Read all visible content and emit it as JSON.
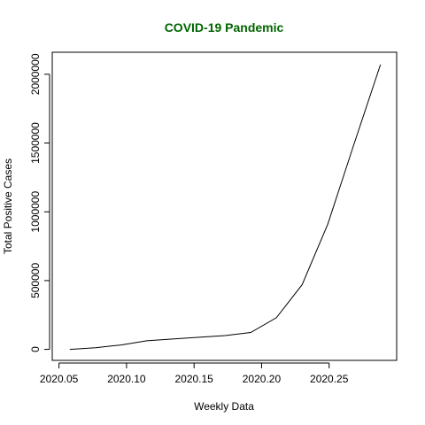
{
  "chart_data": {
    "type": "line",
    "title": "COVID-19 Pandemic",
    "xlabel": "Weekly Data",
    "ylabel": "Total Positive Cases",
    "x_ticks": [
      "2020.05",
      "2020.10",
      "2020.15",
      "2020.20",
      "2020.25"
    ],
    "y_ticks": [
      "0",
      "500000",
      "1000000",
      "1500000",
      "2000000"
    ],
    "xlim": [
      2020.045,
      2020.3
    ],
    "ylim": [
      -80000,
      2160000
    ],
    "grid": false,
    "series": [
      {
        "x": [
          2020.058,
          2020.077,
          2020.096,
          2020.115,
          2020.134,
          2020.154,
          2020.173,
          2020.192,
          2020.211,
          2020.23,
          2020.249,
          2020.268,
          2020.288
        ],
        "y": [
          0,
          12000,
          32000,
          62000,
          75000,
          88000,
          100000,
          123000,
          230000,
          470000,
          910000,
          1480000,
          2070000
        ]
      }
    ]
  },
  "colors": {
    "title": "#006400",
    "line": "#000000",
    "axis": "#000000"
  }
}
